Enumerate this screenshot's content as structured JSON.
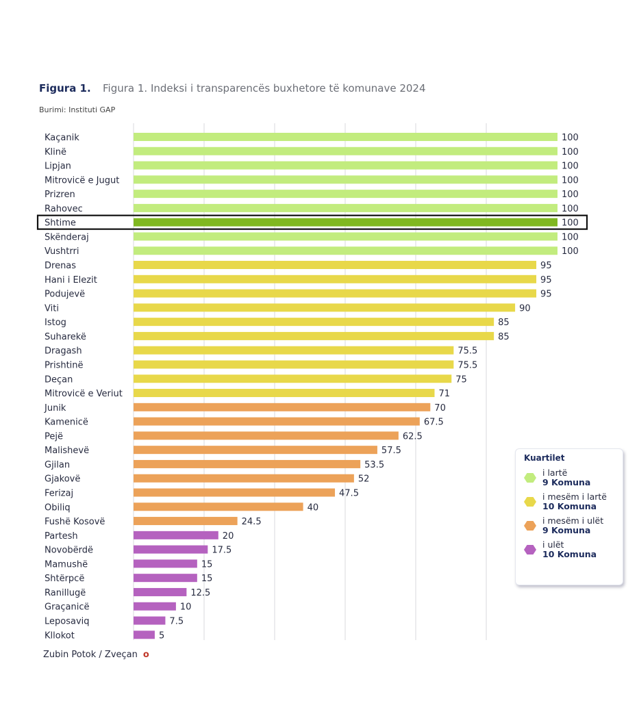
{
  "figure_label": "Figura 1.",
  "source": "Burimi: Instituti GAP",
  "chart_data": {
    "type": "bar",
    "orientation": "horizontal",
    "title": "Figura 1. Indeksi i transparencës buxhetore të komunave 2024",
    "xlim": [
      0,
      100
    ],
    "grid": true,
    "highlighted": "Shtime",
    "categories": [
      "Kaçanik",
      "Klinë",
      "Lipjan",
      "Mitrovicë e Jugut",
      "Prizren",
      "Rahovec",
      "Shtime",
      "Skënderaj",
      "Vushtrri",
      "Drenas",
      "Hani i Elezit",
      "Podujevë",
      "Viti",
      "Istog",
      "Suharekë",
      "Dragash",
      "Prishtinë",
      "Deçan",
      "Mitrovicë e Veriut",
      "Junik",
      "Kamenicë",
      "Pejë",
      "Malishevë",
      "Gjilan",
      "Gjakovë",
      "Ferizaj",
      "Obiliq",
      "Fushë Kosovë",
      "Partesh",
      "Novobërdë",
      "Mamushë",
      "Shtërpcë",
      "Ranillugë",
      "Graçanicë",
      "Leposaviq",
      "Kllokot",
      "Zubin Potok / Zveçan"
    ],
    "values": [
      100,
      100,
      100,
      100,
      100,
      100,
      100,
      100,
      100,
      95,
      95,
      95,
      90,
      85,
      85,
      75.5,
      75.5,
      75,
      71,
      70,
      67.5,
      62.5,
      57.5,
      53.5,
      52,
      47.5,
      40,
      24.5,
      20,
      17.5,
      15,
      15,
      12.5,
      10,
      7.5,
      5,
      0
    ],
    "value_labels": [
      "100",
      "100",
      "100",
      "100",
      "100",
      "100",
      "100",
      "100",
      "100",
      "95",
      "95",
      "95",
      "90",
      "85",
      "85",
      "75.5",
      "75.5",
      "75",
      "71",
      "70",
      "67.5",
      "62.5",
      "57.5",
      "53.5",
      "52",
      "47.5",
      "40",
      "24.5",
      "20",
      "17.5",
      "15",
      "15",
      "12.5",
      "10",
      "7.5",
      "5",
      "o"
    ],
    "quartile": [
      0,
      0,
      0,
      0,
      0,
      0,
      0,
      0,
      0,
      1,
      1,
      1,
      1,
      1,
      1,
      1,
      1,
      1,
      1,
      2,
      2,
      2,
      2,
      2,
      2,
      2,
      2,
      2,
      3,
      3,
      3,
      3,
      3,
      3,
      3,
      3,
      3
    ],
    "legend": {
      "title": "Kuartilet",
      "placement": "right",
      "items": [
        {
          "label": "i lartë",
          "count": "9 Komuna",
          "color": "#c2ec7e"
        },
        {
          "label": "i mesëm i lartë",
          "count": "10 Komuna",
          "color": "#e8d84a"
        },
        {
          "label": "i mesëm i ulët",
          "count": "9 Komuna",
          "color": "#eca259"
        },
        {
          "label": "i ulët",
          "count": "10 Komuna",
          "color": "#b562bf"
        }
      ]
    },
    "highlight_color": "#80b820"
  }
}
